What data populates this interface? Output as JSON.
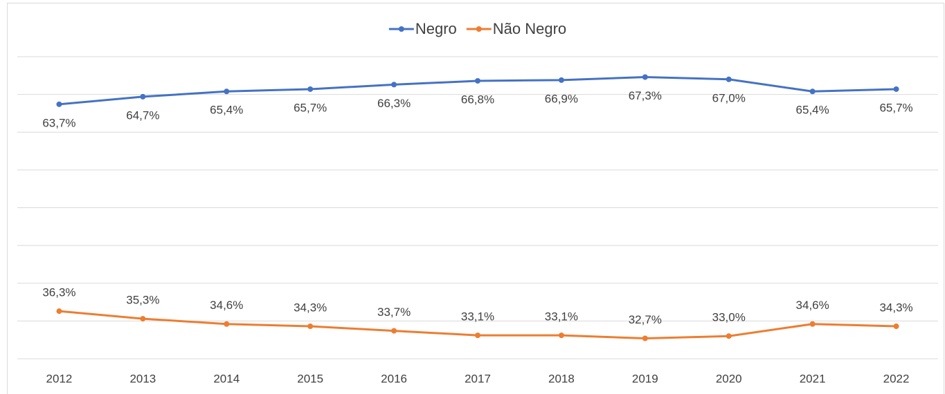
{
  "chart_data": {
    "type": "line",
    "categories": [
      "2012",
      "2013",
      "2014",
      "2015",
      "2016",
      "2017",
      "2018",
      "2019",
      "2020",
      "2021",
      "2022"
    ],
    "series": [
      {
        "name": "Negro",
        "color": "#4472c4",
        "values": [
          63.7,
          64.7,
          65.4,
          65.7,
          66.3,
          66.8,
          66.9,
          67.3,
          67.0,
          65.4,
          65.7
        ],
        "value_labels": [
          "63,7%",
          "64,7%",
          "65,4%",
          "65,7%",
          "66,3%",
          "66,8%",
          "66,9%",
          "67,3%",
          "67,0%",
          "65,4%",
          "65,7%"
        ]
      },
      {
        "name": "Não Negro",
        "color": "#ed7d31",
        "values": [
          36.3,
          35.3,
          34.6,
          34.3,
          33.7,
          33.1,
          33.1,
          32.7,
          33.0,
          34.6,
          34.3
        ],
        "value_labels": [
          "36,3%",
          "35,3%",
          "34,6%",
          "34,3%",
          "33,7%",
          "33,1%",
          "33,1%",
          "32,7%",
          "33,0%",
          "34,6%",
          "34,3%"
        ]
      }
    ],
    "ylim": [
      30,
      70
    ],
    "yticks": [
      30,
      35,
      40,
      45,
      50,
      55,
      60,
      65,
      70
    ],
    "grid": true,
    "legend": "top"
  }
}
